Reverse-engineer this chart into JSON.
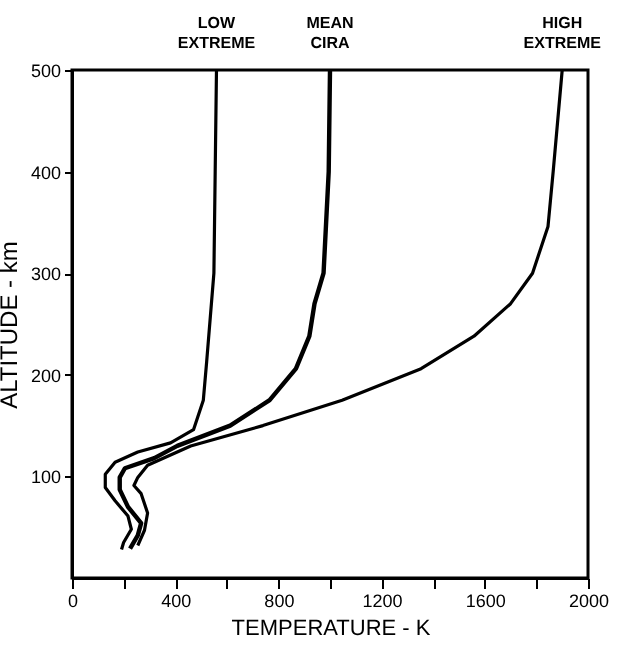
{
  "chart_data": {
    "type": "line",
    "xlabel": "TEMPERATURE - K",
    "ylabel": "ALTITUDE - km",
    "xlim": [
      0,
      2000
    ],
    "ylim": [
      0,
      500
    ],
    "xticks": [
      0,
      {
        "value": 200,
        "label": null
      },
      400,
      {
        "value": 600,
        "label": null
      },
      800,
      {
        "value": 1000,
        "label": null
      },
      1200,
      {
        "value": 1400,
        "label": null
      },
      1600,
      {
        "value": 1800,
        "label": null
      },
      2000
    ],
    "yticks": [
      100,
      200,
      300,
      400,
      500
    ],
    "grid": false,
    "legend": false,
    "series": [
      {
        "name": "LOW EXTREME",
        "color": "#000000",
        "x": [
          192,
          200,
          230,
          217,
          167,
          129,
          129,
          167,
          255,
          382,
          471,
          509,
          522,
          550,
          555,
          560
        ],
        "values": [
          28,
          35,
          48,
          61,
          76,
          89,
          102,
          114,
          124,
          133,
          146,
          175,
          213,
          300,
          400,
          500
        ]
      },
      {
        "name": "MEAN CIRA",
        "color": "#000000",
        "x": [
          225,
          255,
          268,
          217,
          185,
          185,
          205,
          319,
          408,
          613,
          766,
          868,
          920,
          940,
          975,
          995,
          1000
        ],
        "values": [
          29,
          42,
          54,
          70,
          87,
          99,
          108,
          118,
          130,
          150,
          175,
          206,
          238,
          270,
          300,
          400,
          500
        ]
      },
      {
        "name": "HIGH EXTREME",
        "color": "#000000",
        "x": [
          255,
          281,
          293,
          268,
          240,
          255,
          293,
          460,
          740,
          1047,
          1353,
          1558,
          1700,
          1785,
          1845,
          1865,
          1900
        ],
        "values": [
          32,
          47,
          64,
          83,
          91,
          99,
          111,
          130,
          150,
          175,
          206,
          238,
          270,
          300,
          346,
          400,
          500
        ]
      }
    ]
  }
}
